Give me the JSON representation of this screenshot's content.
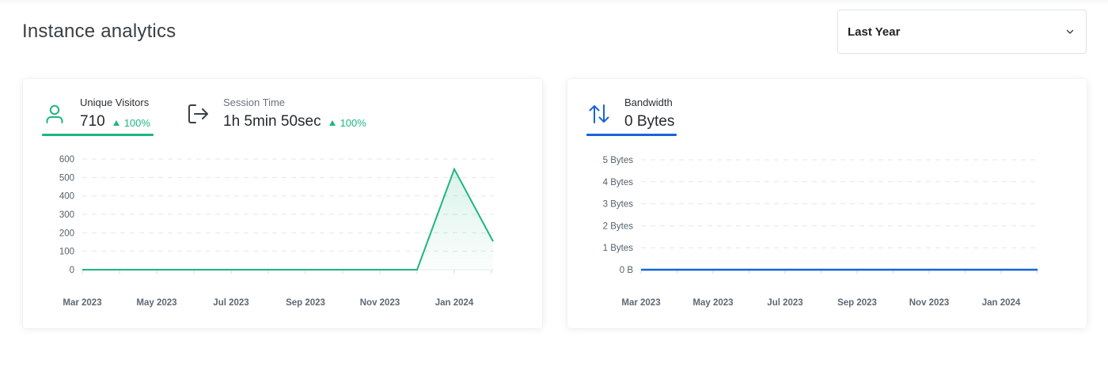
{
  "header": {
    "title": "Instance analytics",
    "period_select": {
      "value": "Last Year"
    }
  },
  "visitors_card": {
    "tabs": [
      {
        "name": "Unique Visitors",
        "value": "710",
        "change": "100%",
        "icon": "user-icon",
        "active": true
      },
      {
        "name": "Session Time",
        "value": "1h 5min 50sec",
        "change": "100%",
        "icon": "logout-icon",
        "active": false
      }
    ]
  },
  "bandwidth_card": {
    "tabs": [
      {
        "name": "Bandwidth",
        "value": "0 Bytes",
        "icon": "arrows-up-down-icon",
        "active": true
      }
    ]
  },
  "colors": {
    "green": "#1fb67e",
    "blue": "#1565d8",
    "grid": "#e3e6ea"
  },
  "chart_data": [
    {
      "type": "area",
      "series": [
        {
          "name": "Unique Visitors",
          "x": [
            "Mar 2023",
            "Apr 2023",
            "May 2023",
            "Jun 2023",
            "Jul 2023",
            "Aug 2023",
            "Sep 2023",
            "Oct 2023",
            "Nov 2023",
            "Dec 2023",
            "Jan 2024",
            "Feb 2024"
          ],
          "values": [
            0,
            0,
            0,
            0,
            0,
            0,
            0,
            0,
            0,
            0,
            545,
            170
          ]
        }
      ],
      "x_tick_labels": [
        "Mar 2023",
        "May 2023",
        "Jul 2023",
        "Sep 2023",
        "Nov 2023",
        "Jan 2024"
      ],
      "y_ticks": [
        0,
        100,
        200,
        300,
        400,
        500,
        600
      ],
      "ylim": [
        0,
        600
      ],
      "grid": true
    },
    {
      "type": "line",
      "series": [
        {
          "name": "Bandwidth",
          "x": [
            "Mar 2023",
            "Apr 2023",
            "May 2023",
            "Jun 2023",
            "Jul 2023",
            "Aug 2023",
            "Sep 2023",
            "Oct 2023",
            "Nov 2023",
            "Dec 2023",
            "Jan 2024",
            "Feb 2024"
          ],
          "values": [
            0,
            0,
            0,
            0,
            0,
            0,
            0,
            0,
            0,
            0,
            0,
            0
          ]
        }
      ],
      "x_tick_labels": [
        "Mar 2023",
        "May 2023",
        "Jul 2023",
        "Sep 2023",
        "Nov 2023",
        "Jan 2024"
      ],
      "y_tick_labels": [
        "0 B",
        "1 Bytes",
        "2 Bytes",
        "3 Bytes",
        "4 Bytes",
        "5 Bytes"
      ],
      "ylim": [
        0,
        5
      ],
      "grid": true
    }
  ]
}
